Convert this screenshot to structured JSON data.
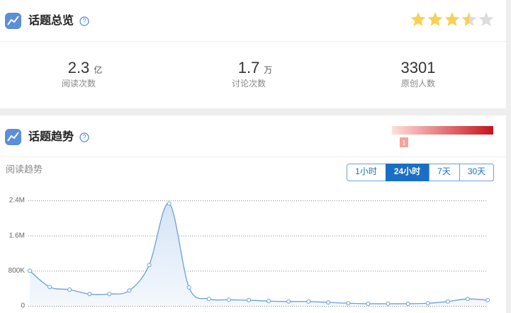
{
  "overview": {
    "title": "话题总览",
    "rating": 3.5,
    "rating_max": 5,
    "stats": [
      {
        "value": 2.3,
        "unit": "亿",
        "label": "阅读次数"
      },
      {
        "value": 1.7,
        "unit": "万",
        "label": "讨论次数"
      },
      {
        "value": 3301,
        "label": "原创人数"
      }
    ]
  },
  "trend": {
    "title": "话题趋势",
    "heat_marker": "1",
    "subtitle": "阅读趋势",
    "tabs": [
      "1小时",
      "24小时",
      "7天",
      "30天"
    ],
    "active_tab": 1
  },
  "chart_data": {
    "type": "line",
    "color": "#6a9fd8",
    "values": [
      800000,
      430000,
      370000,
      270000,
      270000,
      350000,
      930000,
      2330000,
      420000,
      160000,
      140000,
      130000,
      110000,
      100000,
      100000,
      80000,
      60000,
      50000,
      50000,
      50000,
      60000,
      100000,
      160000,
      130000
    ],
    "ylim": [
      0,
      2400000
    ],
    "yticks": [
      0,
      {
        "value": 800000,
        "label": "800K"
      },
      {
        "value": 1600000,
        "label": "1.6M"
      },
      {
        "value": 2400000,
        "label": "2.4M"
      }
    ],
    "grid": true
  }
}
